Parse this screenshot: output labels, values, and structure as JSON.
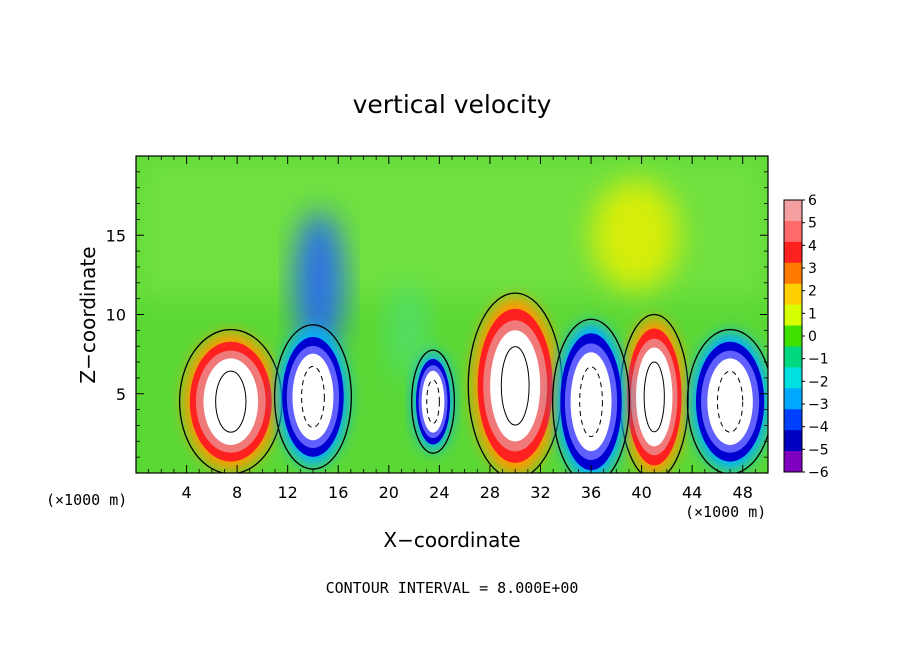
{
  "chart_data": {
    "type": "heatmap",
    "title": "vertical velocity",
    "xlabel": "X−coordinate",
    "ylabel": "Z−coordinate",
    "x_unit_left": "(×1000 m)",
    "x_unit_right": "(×1000 m)",
    "footer": "CONTOUR INTERVAL = 8.000E+00",
    "xlim": [
      0,
      50
    ],
    "ylim": [
      0,
      20
    ],
    "x_ticks": [
      4,
      8,
      12,
      16,
      20,
      24,
      28,
      32,
      36,
      40,
      44,
      48
    ],
    "y_ticks": [
      5,
      10,
      15
    ],
    "x_tick_labels": [
      "4",
      "8",
      "12",
      "16",
      "20",
      "24",
      "28",
      "32",
      "36",
      "40",
      "44",
      "48"
    ],
    "y_tick_labels": [
      "5",
      "10",
      "15"
    ],
    "colorbar": {
      "levels": [
        6,
        5,
        4,
        3,
        2,
        1,
        0,
        -1,
        -2,
        -3,
        -4,
        -5,
        -6
      ],
      "labels": [
        "6",
        "5",
        "4",
        "3",
        "2",
        "1",
        "0",
        "−1",
        "−2",
        "−3",
        "−4",
        "−5",
        "−6"
      ],
      "colors": [
        "#f4a0a0",
        "#ff6a6a",
        "#ff2020",
        "#ff7a00",
        "#ffd000",
        "#d8ff00",
        "#40e000",
        "#00d880",
        "#00e0e0",
        "#00a8ff",
        "#0040ff",
        "#0000c0",
        "#8000c0"
      ]
    },
    "field_colors": {
      "background": "#5ad836",
      "upper": "#70e040",
      "updraft_core": "#ffffff",
      "updraft_ring1": "#f07a7a",
      "updraft_ring2": "#ff2020",
      "updraft_ring3": "#ff9a00",
      "downdraft_core": "#ffffff",
      "downdraft_ring1": "#6060ff",
      "downdraft_ring2": "#0000d0",
      "downdraft_ring3": "#00b0ff"
    },
    "updrafts": [
      {
        "x_center": 7.5,
        "z_center": 4.5,
        "width": 6,
        "height": 7
      },
      {
        "x_center": 30.0,
        "z_center": 5.5,
        "width": 5.5,
        "height": 9
      },
      {
        "x_center": 41.0,
        "z_center": 4.8,
        "width": 4,
        "height": 8
      }
    ],
    "downdrafts": [
      {
        "x_center": 14.0,
        "z_center": 4.8,
        "width": 4.5,
        "height": 7
      },
      {
        "x_center": 36.0,
        "z_center": 4.5,
        "width": 4.5,
        "height": 8
      },
      {
        "x_center": 47.0,
        "z_center": 4.5,
        "width": 5,
        "height": 7
      },
      {
        "x_center": 23.5,
        "z_center": 4.5,
        "width": 2.5,
        "height": 5
      }
    ],
    "upper_anomalies": [
      {
        "x_center": 14.5,
        "z_center": 12,
        "width": 4,
        "height": 9,
        "color": "#2060ff"
      },
      {
        "x_center": 39.5,
        "z_center": 15,
        "width": 7,
        "height": 7,
        "color": "#e8f000"
      },
      {
        "x_center": 21.5,
        "z_center": 9,
        "width": 3,
        "height": 6,
        "color": "#50e070"
      }
    ]
  }
}
